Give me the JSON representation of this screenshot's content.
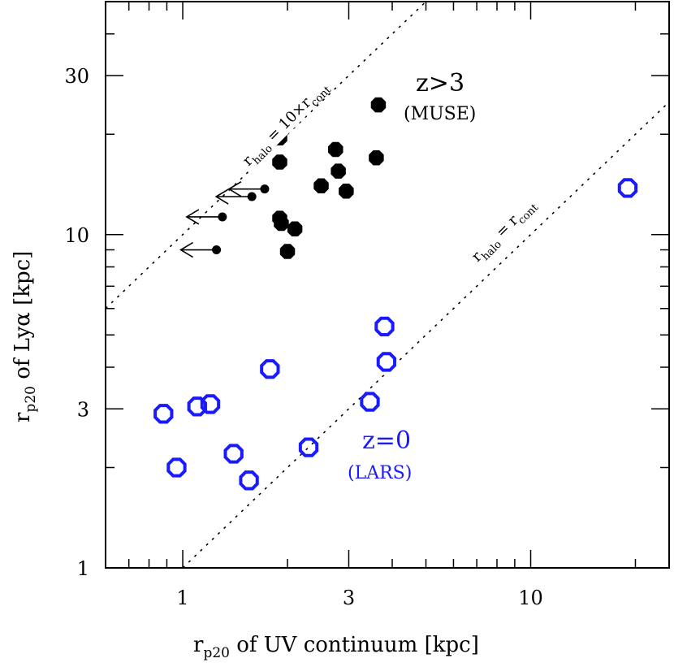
{
  "chart_data": {
    "type": "scatter",
    "x_scale": "log",
    "y_scale": "log",
    "xlim": [
      0.6,
      25
    ],
    "ylim": [
      1,
      50
    ],
    "xticks": [
      {
        "value": 1,
        "label": "1"
      },
      {
        "value": 3,
        "label": "3"
      },
      {
        "value": 10,
        "label": "10"
      }
    ],
    "yticks": [
      {
        "value": 1,
        "label": "1"
      },
      {
        "value": 3,
        "label": "3"
      },
      {
        "value": 10,
        "label": "10"
      },
      {
        "value": 30,
        "label": "30"
      }
    ],
    "xlabel": {
      "main": "r",
      "sub": "p20",
      "rest": " of UV continuum [kpc]"
    },
    "ylabel": {
      "main": "r",
      "sub": "p20",
      "rest": " of Lyα [kpc]"
    },
    "grid": false,
    "colors": {
      "muse": "#000000",
      "lars": "#1a1aff",
      "axes": "#000000"
    },
    "series": [
      {
        "marker": "filled-octagon",
        "color": "#000000",
        "points": [
          {
            "x": 1.9,
            "y": 19.5
          },
          {
            "x": 1.9,
            "y": 16.5
          },
          {
            "x": 2.75,
            "y": 18.0
          },
          {
            "x": 3.65,
            "y": 24.5
          },
          {
            "x": 3.6,
            "y": 17.0
          },
          {
            "x": 2.8,
            "y": 15.5
          },
          {
            "x": 2.5,
            "y": 14.0
          },
          {
            "x": 2.95,
            "y": 13.5
          },
          {
            "x": 1.9,
            "y": 11.2
          },
          {
            "x": 1.92,
            "y": 10.8
          },
          {
            "x": 2.1,
            "y": 10.4
          },
          {
            "x": 2.0,
            "y": 8.9
          }
        ]
      },
      {
        "marker": "small-dot-upper-limit",
        "color": "#000000",
        "points": [
          {
            "x": 1.72,
            "y": 13.7
          },
          {
            "x": 1.58,
            "y": 13.0
          },
          {
            "x": 1.3,
            "y": 11.3
          },
          {
            "x": 1.25,
            "y": 9.0
          }
        ]
      },
      {
        "marker": "open-octagon",
        "color": "#1a1aff",
        "points": [
          {
            "x": 19.0,
            "y": 13.8
          },
          {
            "x": 3.8,
            "y": 5.3
          },
          {
            "x": 3.85,
            "y": 4.15
          },
          {
            "x": 1.78,
            "y": 3.95
          },
          {
            "x": 3.45,
            "y": 3.15
          },
          {
            "x": 0.88,
            "y": 2.9
          },
          {
            "x": 1.1,
            "y": 3.05
          },
          {
            "x": 1.2,
            "y": 3.1
          },
          {
            "x": 2.3,
            "y": 2.3
          },
          {
            "x": 1.4,
            "y": 2.2
          },
          {
            "x": 0.96,
            "y": 2.0
          },
          {
            "x": 1.55,
            "y": 1.83
          }
        ]
      }
    ],
    "lines": [
      {
        "slope_factor": 10,
        "label_main": "r",
        "label_sub": "halo",
        "label_eq": " = 10×r",
        "label_sub2": "cont"
      },
      {
        "slope_factor": 1,
        "label_main": "r",
        "label_sub": "halo",
        "label_eq": " = r",
        "label_sub2": "cont"
      }
    ],
    "annotations": [
      {
        "text": "z>3",
        "color": "#000000"
      },
      {
        "text": "(MUSE)",
        "color": "#000000"
      },
      {
        "text": "z=0",
        "color": "#1a1aff"
      },
      {
        "text": "(LARS)",
        "color": "#1a1aff"
      }
    ]
  }
}
